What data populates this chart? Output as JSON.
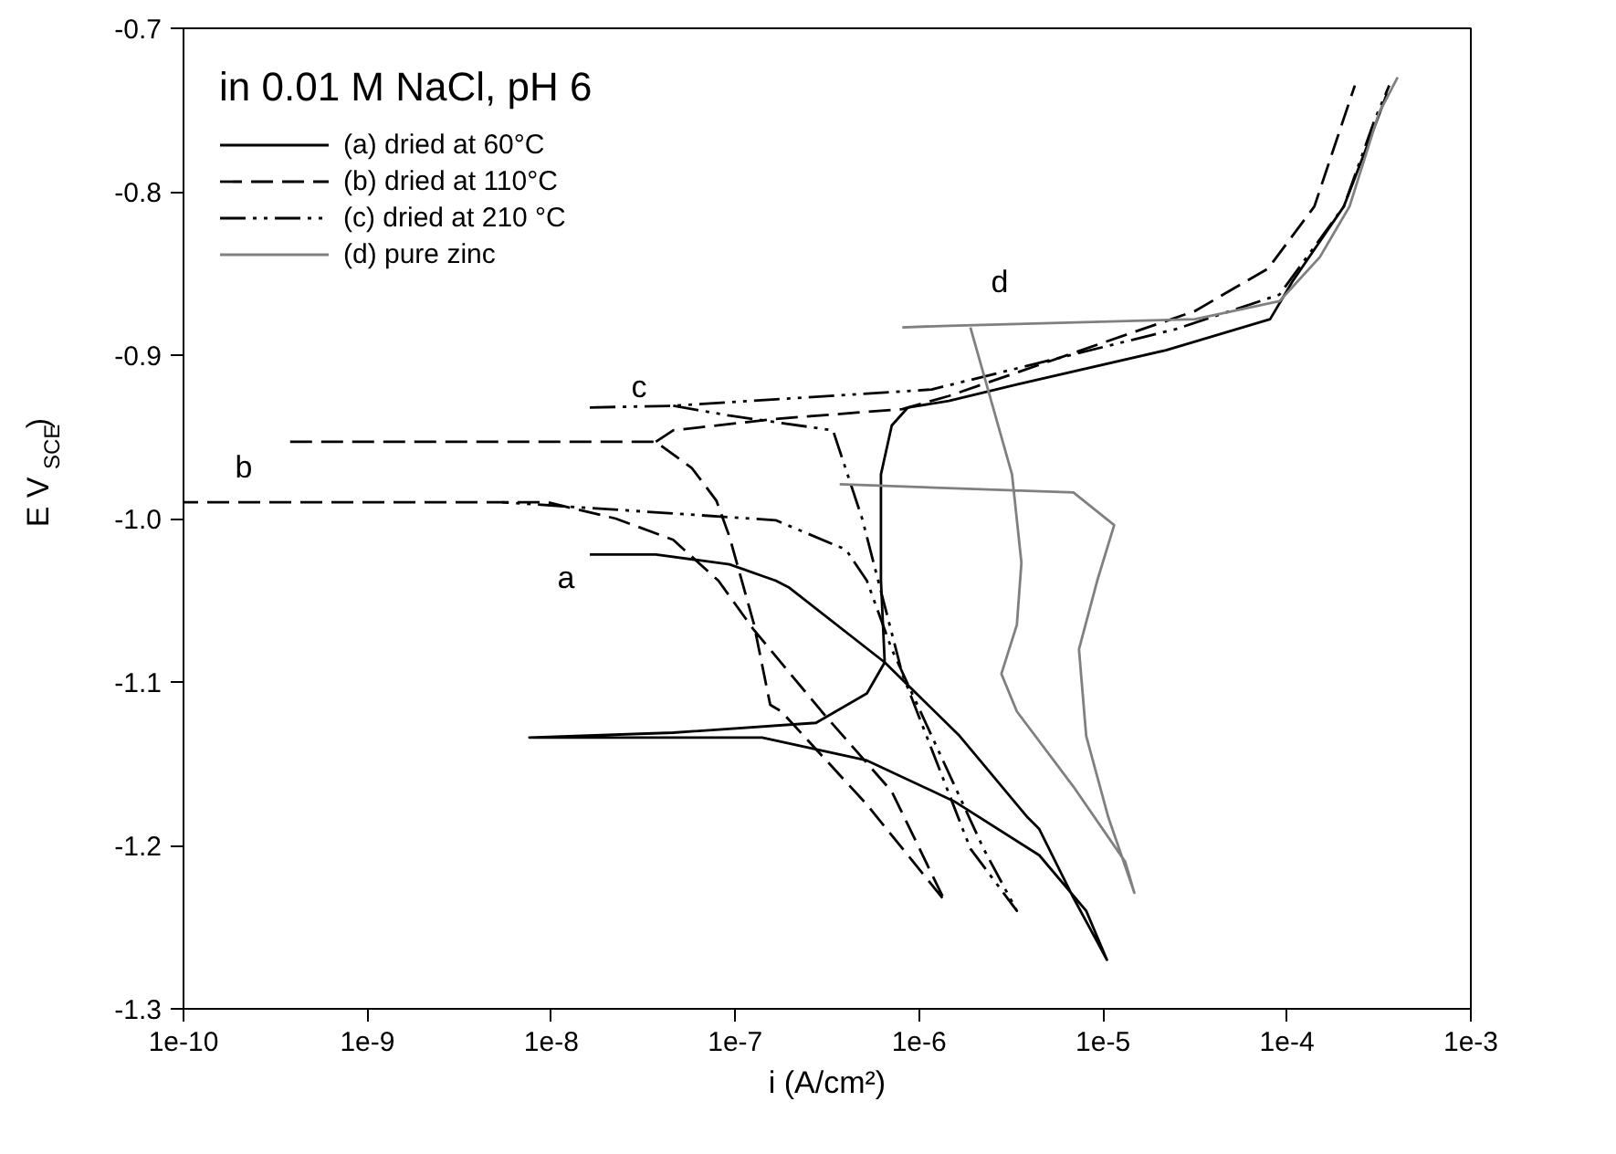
{
  "chart_data": {
    "type": "line",
    "xlabel": "i (A/cm²)",
    "ylabel": "E V$_{SCE}$)",
    "legend_title": "in 0.01 M NaCl, pH 6",
    "log": "x",
    "grid": false,
    "legend": "top left",
    "marker": "none",
    "xlim": [
      1e-10,
      0.001
    ],
    "ylim": [
      -1.3,
      -0.7
    ],
    "xticks": [
      {
        "value": 1e-10,
        "label": "1e-10"
      },
      {
        "value": 1e-09,
        "label": "1e-9"
      },
      {
        "value": 1e-08,
        "label": "1e-8"
      },
      {
        "value": 1e-07,
        "label": "1e-7"
      },
      {
        "value": 1e-06,
        "label": "1e-6"
      },
      {
        "value": 1e-05,
        "label": "1e-5"
      },
      {
        "value": 0.0001,
        "label": "1e-4"
      },
      {
        "value": 0.001,
        "label": "1e-3"
      }
    ],
    "yticks": [
      -1.3,
      -1.2,
      -1.1,
      {
        "value": -1.0,
        "label": "-1.0"
      },
      -0.9,
      -0.8,
      -0.7
    ],
    "series": [
      {
        "name": "(a) dried at 60°C",
        "color": "#000000",
        "line_style": "solid",
        "x": [
          1.62e-08,
          3.7e-08,
          9.3e-08,
          1.66e-07,
          1.95e-07,
          6.5e-07,
          1.66e-06,
          3.9e-06,
          4.5e-06,
          6.9e-06,
          1.05e-05,
          8.1e-06,
          4.5e-06,
          1.55e-06,
          5.2e-07,
          1.4e-07,
          7.6e-09,
          4.6e-08,
          2.75e-07,
          5.2e-07,
          6.5e-07,
          6.2e-07,
          6.2e-07,
          7.1e-07,
          8.7e-07,
          1.45e-06,
          3.4e-06,
          2.2e-05,
          8.1e-05,
          0.000107,
          0.000204,
          0.0003,
          0.00035
        ],
        "values": [
          -1.022,
          -1.022,
          -1.028,
          -1.038,
          -1.042,
          -1.088,
          -1.133,
          -1.183,
          -1.19,
          -1.232,
          -1.27,
          -1.24,
          -1.206,
          -1.173,
          -1.148,
          -1.134,
          -1.134,
          -1.131,
          -1.125,
          -1.107,
          -1.088,
          -1.038,
          -0.973,
          -0.943,
          -0.932,
          -0.928,
          -0.918,
          -0.897,
          -0.878,
          -0.855,
          -0.809,
          -0.76,
          -0.74
        ]
      },
      {
        "name": "(b) dried at 110°C",
        "color": "#000000",
        "line_style": "dashed",
        "x": [
          3.8e-10,
          3.7e-08,
          5.8e-08,
          7.9e-08,
          9.3e-08,
          1.26e-07,
          1.55e-07,
          1.78e-07,
          5.2e-07,
          1.38e-06,
          7.1e-07,
          2.95e-07,
          1.26e-07,
          8.1e-08,
          4.6e-08,
          2.24e-08,
          9.5e-09,
          1e-10,
          null,
          3.7e-08,
          4.6e-08,
          1.66e-07,
          8.1e-07,
          1.45e-06,
          3.16e-05,
          7.9e-05,
          0.000141,
          0.000234
        ],
        "values": [
          -0.953,
          -0.953,
          -0.969,
          -0.989,
          -1.011,
          -1.064,
          -1.114,
          -1.118,
          -1.175,
          -1.234,
          -1.167,
          -1.118,
          -1.068,
          -1.038,
          -1.013,
          -1.0,
          -0.99,
          -0.99,
          null,
          -0.953,
          -0.946,
          -0.939,
          -0.933,
          -0.925,
          -0.873,
          -0.847,
          -0.809,
          -0.735
        ]
      },
      {
        "name": "(c) dried at 210 °C",
        "color": "#000000",
        "line_style": "dashdot",
        "x": [
          1.62e-08,
          4.6e-08,
          1.17e-06,
          2.5e-05,
          9.1e-05,
          0.000204,
          0.0003,
          0.00036,
          null,
          4.6e-08,
          9.3e-08,
          3.4e-07,
          4.9e-07,
          8.1e-07,
          1.9e-06,
          3.4e-06,
          2.24e-06,
          1.17e-06,
          7.1e-07,
          5.2e-07,
          4e-07,
          1.66e-07,
          5.4e-09
        ],
        "values": [
          -0.932,
          -0.931,
          -0.921,
          -0.884,
          -0.863,
          -0.809,
          -0.756,
          -0.735,
          null,
          -0.931,
          -0.937,
          -0.946,
          -1.0,
          -1.095,
          -1.202,
          -1.24,
          -1.202,
          -1.133,
          -1.08,
          -1.038,
          -1.019,
          -1.001,
          -0.99
        ]
      },
      {
        "name": "(d) pure zinc",
        "color": "#808080",
        "line_style": "solid",
        "x": [
          3.7e-07,
          6.9e-06,
          1.15e-05,
          9.3e-06,
          7.4e-06,
          8.1e-06,
          1.07e-05,
          1.48e-05,
          1.32e-05,
          6.9e-06,
          3.4e-06,
          2.8e-06,
          3.4e-06,
          3.6e-06,
          3.2e-06,
          2.3e-06,
          1.9e-06,
          null,
          8.1e-07,
          1.45e-06,
          3.16e-05,
          9.1e-05,
          0.000151,
          0.000219,
          0.000316,
          0.0004
        ],
        "values": [
          -0.979,
          -0.984,
          -1.004,
          -1.038,
          -1.08,
          -1.133,
          -1.183,
          -1.229,
          -1.21,
          -1.164,
          -1.118,
          -1.095,
          -1.065,
          -1.027,
          -0.973,
          -0.916,
          -0.883,
          null,
          -0.883,
          -0.882,
          -0.878,
          -0.867,
          -0.84,
          -0.809,
          -0.752,
          -0.73
        ]
      }
    ],
    "annotations": [
      {
        "text": "a",
        "x": 1.62e-08,
        "y": -1.022
      },
      {
        "text": "b",
        "x": 1e-10,
        "y": -0.99
      },
      {
        "text": "c",
        "x": 1.62e-08,
        "y": -0.932
      },
      {
        "text": "d",
        "x": 1.9e-06,
        "y": -0.883
      }
    ]
  }
}
